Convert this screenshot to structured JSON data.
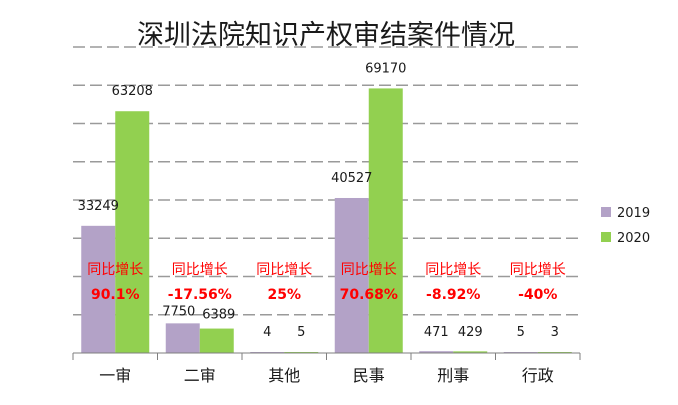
{
  "chart_data": {
    "type": "bar",
    "title": "深圳法院知识产权审结案件情况",
    "categories": [
      "一审",
      "二审",
      "其他",
      "民事",
      "刑事",
      "行政"
    ],
    "series": [
      {
        "name": "2019",
        "color": "#b3a2c7",
        "values": [
          33249,
          7750,
          4,
          40527,
          471,
          5
        ]
      },
      {
        "name": "2020",
        "color": "#92d050",
        "values": [
          63208,
          6389,
          5,
          69170,
          429,
          3
        ]
      }
    ],
    "yoy_label": "同比增长",
    "yoy": [
      "90.1%",
      "-17.56%",
      "25%",
      "70.68%",
      "-8.92%",
      "-40%"
    ],
    "annotation_color": "#ff0000",
    "ylim": [
      0,
      80000
    ],
    "grid": true,
    "grid_style": "dashed",
    "legend_position": "right"
  }
}
